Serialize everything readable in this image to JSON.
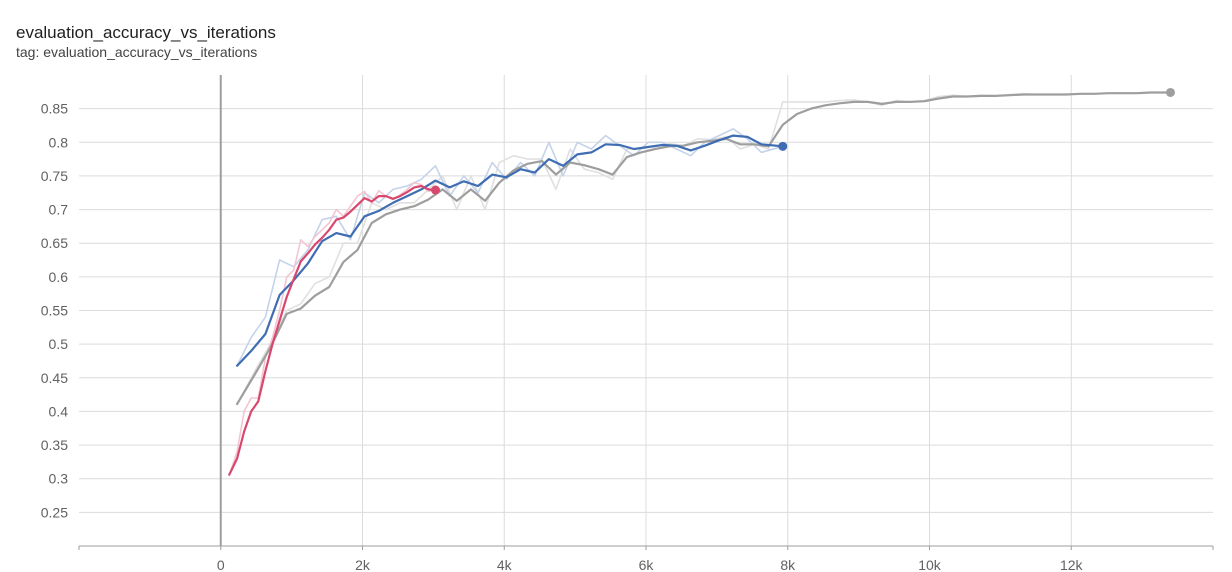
{
  "card": {
    "title": "evaluation_accuracy_vs_iterations",
    "tag": "tag: evaluation_accuracy_vs_iterations"
  },
  "chart_data": {
    "type": "line",
    "title": "evaluation_accuracy_vs_iterations",
    "xlabel": "",
    "ylabel": "",
    "xlim": [
      -2000,
      14000
    ],
    "ylim": [
      0.2,
      0.9
    ],
    "xticks": [
      0,
      2000,
      4000,
      6000,
      8000,
      10000,
      12000
    ],
    "xtick_labels": [
      "0",
      "2k",
      "4k",
      "6k",
      "8k",
      "10k",
      "12k"
    ],
    "yticks": [
      0.25,
      0.3,
      0.35,
      0.4,
      0.45,
      0.5,
      0.55,
      0.6,
      0.65,
      0.7,
      0.75,
      0.8,
      0.85
    ],
    "ytick_labels": [
      "0.25",
      "0.3",
      "0.35",
      "0.4",
      "0.45",
      "0.5",
      "0.55",
      "0.6",
      "0.65",
      "0.7",
      "0.75",
      "0.8",
      "0.85"
    ],
    "grid": true,
    "legend": "none",
    "series": [
      {
        "color": "#9e9e9e",
        "raw_color": "#e0e0e0",
        "smoothed": true,
        "end_marker": true,
        "x": [
          230,
          480,
          700,
          930,
          1130,
          1330,
          1530,
          1730,
          1930,
          2130,
          2330,
          2530,
          2730,
          2930,
          3130,
          3330,
          3530,
          3730,
          3930,
          4130,
          4330,
          4530,
          4730,
          4930,
          5130,
          5330,
          5530,
          5730,
          5930,
          6130,
          6330,
          6530,
          6730,
          6930,
          7130,
          7330,
          7530,
          7730,
          7930,
          8130,
          8330,
          8530,
          8730,
          8930,
          9130,
          9330,
          9530,
          9730,
          9930,
          10130,
          10330,
          10530,
          10730,
          10930,
          11130,
          11330,
          11530,
          11730,
          11930,
          12130,
          12330,
          12530,
          12730,
          12930,
          13130,
          13400
        ],
        "y": [
          0.411,
          0.455,
          0.495,
          0.545,
          0.553,
          0.572,
          0.585,
          0.622,
          0.64,
          0.68,
          0.693,
          0.7,
          0.705,
          0.715,
          0.73,
          0.713,
          0.73,
          0.713,
          0.74,
          0.758,
          0.768,
          0.772,
          0.752,
          0.77,
          0.766,
          0.76,
          0.752,
          0.778,
          0.785,
          0.79,
          0.794,
          0.795,
          0.8,
          0.802,
          0.805,
          0.797,
          0.797,
          0.794,
          0.826,
          0.842,
          0.85,
          0.855,
          0.858,
          0.86,
          0.86,
          0.857,
          0.86,
          0.86,
          0.861,
          0.865,
          0.868,
          0.868,
          0.869,
          0.869,
          0.87,
          0.871,
          0.871,
          0.871,
          0.871,
          0.872,
          0.872,
          0.873,
          0.873,
          0.873,
          0.874,
          0.874
        ],
        "raw_y": [
          0.41,
          0.46,
          0.5,
          0.55,
          0.56,
          0.59,
          0.6,
          0.65,
          0.65,
          0.71,
          0.7,
          0.71,
          0.71,
          0.73,
          0.75,
          0.7,
          0.75,
          0.7,
          0.77,
          0.78,
          0.775,
          0.775,
          0.73,
          0.79,
          0.76,
          0.755,
          0.745,
          0.79,
          0.79,
          0.795,
          0.798,
          0.795,
          0.805,
          0.804,
          0.808,
          0.79,
          0.797,
          0.79,
          0.86,
          0.86,
          0.86,
          0.86,
          0.862,
          0.863,
          0.86,
          0.855,
          0.862,
          0.86,
          0.862,
          0.868,
          0.87,
          0.868,
          0.87,
          0.869,
          0.871,
          0.872,
          0.871,
          0.871,
          0.871,
          0.872,
          0.872,
          0.873,
          0.873,
          0.873,
          0.874,
          0.874
        ]
      },
      {
        "color": "#3f6db3",
        "raw_color": "#c5d3ea",
        "smoothed": true,
        "end_marker": true,
        "x": [
          230,
          430,
          630,
          830,
          1030,
          1230,
          1430,
          1630,
          1830,
          2030,
          2230,
          2430,
          2630,
          2830,
          3030,
          3230,
          3430,
          3630,
          3830,
          4030,
          4230,
          4430,
          4630,
          4830,
          5030,
          5230,
          5430,
          5630,
          5830,
          6030,
          6230,
          6430,
          6630,
          6830,
          7030,
          7230,
          7430,
          7630,
          7930
        ],
        "y": [
          0.468,
          0.49,
          0.515,
          0.573,
          0.595,
          0.62,
          0.653,
          0.665,
          0.66,
          0.69,
          0.698,
          0.71,
          0.72,
          0.73,
          0.743,
          0.733,
          0.742,
          0.735,
          0.752,
          0.748,
          0.76,
          0.755,
          0.775,
          0.765,
          0.782,
          0.785,
          0.797,
          0.796,
          0.79,
          0.793,
          0.796,
          0.795,
          0.788,
          0.795,
          0.803,
          0.81,
          0.808,
          0.797,
          0.794
        ],
        "raw_y": [
          0.468,
          0.51,
          0.54,
          0.625,
          0.615,
          0.64,
          0.685,
          0.69,
          0.655,
          0.725,
          0.71,
          0.73,
          0.735,
          0.745,
          0.765,
          0.72,
          0.75,
          0.725,
          0.77,
          0.745,
          0.77,
          0.75,
          0.8,
          0.75,
          0.8,
          0.79,
          0.81,
          0.795,
          0.78,
          0.8,
          0.8,
          0.79,
          0.78,
          0.8,
          0.81,
          0.82,
          0.805,
          0.785,
          0.794
        ]
      },
      {
        "color": "#d8486e",
        "raw_color": "#f3c5d1",
        "smoothed": true,
        "end_marker": true,
        "x": [
          120,
          230,
          330,
          430,
          530,
          630,
          730,
          830,
          930,
          1030,
          1130,
          1230,
          1330,
          1430,
          1530,
          1630,
          1730,
          1830,
          1930,
          2030,
          2130,
          2230,
          2330,
          2430,
          2530,
          2630,
          2730,
          2830,
          2930,
          3030
        ],
        "y": [
          0.306,
          0.33,
          0.37,
          0.4,
          0.415,
          0.46,
          0.5,
          0.535,
          0.57,
          0.597,
          0.623,
          0.635,
          0.648,
          0.658,
          0.67,
          0.685,
          0.688,
          0.697,
          0.707,
          0.717,
          0.712,
          0.72,
          0.72,
          0.716,
          0.72,
          0.726,
          0.733,
          0.735,
          0.73,
          0.729
        ],
        "raw_y": [
          0.306,
          0.34,
          0.4,
          0.42,
          0.42,
          0.48,
          0.51,
          0.55,
          0.6,
          0.61,
          0.655,
          0.645,
          0.66,
          0.67,
          0.68,
          0.7,
          0.69,
          0.705,
          0.72,
          0.727,
          0.71,
          0.728,
          0.72,
          0.715,
          0.722,
          0.73,
          0.74,
          0.737,
          0.727,
          0.729
        ]
      }
    ]
  }
}
